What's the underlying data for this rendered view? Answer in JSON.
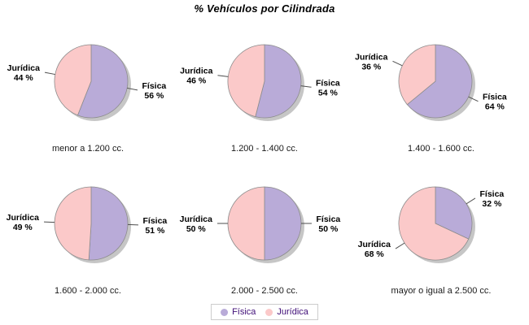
{
  "chart_data": {
    "type": "pie",
    "title": "% Vehículos por Cilindrada",
    "series_names": [
      "Física",
      "Jurídica"
    ],
    "series_colors": [
      "#B9ABD8",
      "#FBC9C9"
    ],
    "outline_color": "#8C8C8C",
    "shadow_color": "rgba(128,128,128,0.45)",
    "leader_line_color": "#4d4d4d",
    "label_suffix": " %",
    "legend": {
      "position": "bottom",
      "text_color": "#3F0D77",
      "border_color": "#CCCCCC"
    },
    "pies": [
      {
        "category": "menor a 1.200 cc.",
        "values": [
          56,
          44
        ]
      },
      {
        "category": "1.200 - 1.400 cc.",
        "values": [
          54,
          46
        ]
      },
      {
        "category": "1.400 - 1.600 cc.",
        "values": [
          64,
          36
        ]
      },
      {
        "category": "1.600 - 2.000 cc.",
        "values": [
          51,
          49
        ]
      },
      {
        "category": "2.000 - 2.500 cc.",
        "values": [
          50,
          50
        ]
      },
      {
        "category": "mayor o igual a 2.500 cc.",
        "values": [
          32,
          68
        ]
      }
    ]
  }
}
